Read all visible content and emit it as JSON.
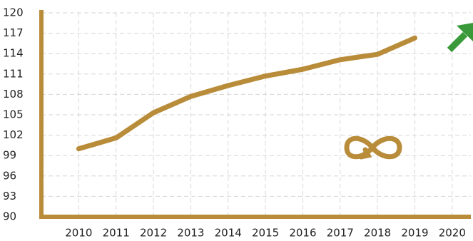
{
  "chart_data": {
    "type": "line",
    "x": [
      2010,
      2011,
      2012,
      2013,
      2014,
      2015,
      2016,
      2017,
      2018,
      2019,
      2020
    ],
    "series": [
      {
        "color": "#b98c3a",
        "values": [
          100,
          101.6,
          105.3,
          107.7,
          109.3,
          110.7,
          111.7,
          113.1,
          113.9,
          116.3,
          null
        ]
      }
    ],
    "xlim": [
      2009,
      2020.5
    ],
    "xticks": [
      2010,
      2011,
      2012,
      2013,
      2014,
      2015,
      2016,
      2017,
      2018,
      2019,
      2020
    ],
    "ylim": [
      90,
      120
    ],
    "yticks": [
      90,
      93,
      96,
      99,
      102,
      105,
      108,
      111,
      114,
      117,
      120
    ],
    "grid": true
  }
}
